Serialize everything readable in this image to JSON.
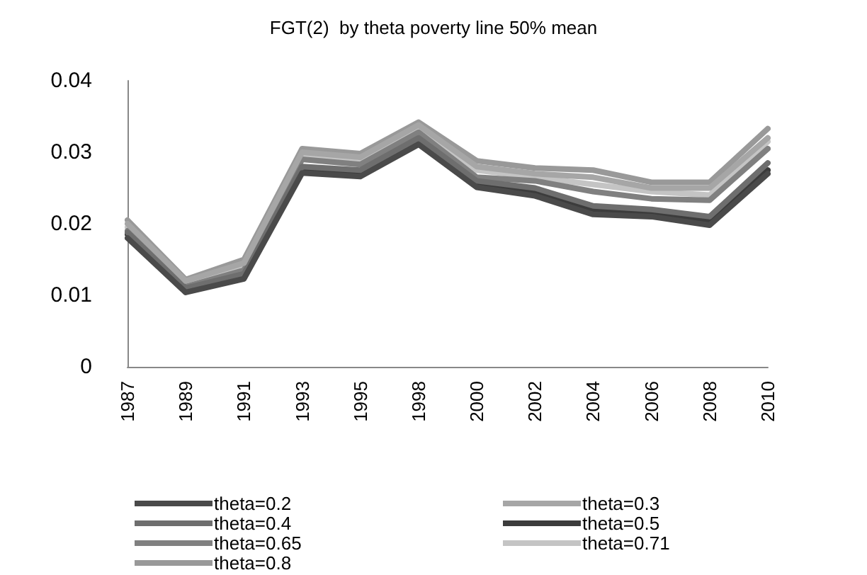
{
  "chart_data": {
    "type": "line",
    "title": "FGT(2)  by theta poverty line 50% mean",
    "categories": [
      "1987",
      "1989",
      "1991",
      "1993",
      "1995",
      "1998",
      "2000",
      "2002",
      "2004",
      "2006",
      "2008",
      "2010"
    ],
    "series": [
      {
        "name": "theta=0.2",
        "color": "#4a4a4a",
        "values": [
          0.018,
          0.0104,
          0.0123,
          0.0271,
          0.0266,
          0.0311,
          0.0251,
          0.0239,
          0.0213,
          0.021,
          0.0198,
          0.027
        ]
      },
      {
        "name": "theta=0.3",
        "color": "#a6a6a6",
        "values": [
          0.02,
          0.012,
          0.0145,
          0.03,
          0.0293,
          0.0338,
          0.028,
          0.027,
          0.0265,
          0.025,
          0.025,
          0.032
        ]
      },
      {
        "name": "theta=0.4",
        "color": "#6e6e6e",
        "values": [
          0.0188,
          0.011,
          0.013,
          0.028,
          0.0275,
          0.032,
          0.026,
          0.025,
          0.0225,
          0.022,
          0.021,
          0.0285
        ]
      },
      {
        "name": "theta=0.5",
        "color": "#3c3c3c",
        "values": [
          0.0185,
          0.0107,
          0.0127,
          0.0275,
          0.027,
          0.0316,
          0.0255,
          0.0243,
          0.0218,
          0.0215,
          0.0203,
          0.0275
        ]
      },
      {
        "name": "theta=0.65",
        "color": "#808080",
        "values": [
          0.019,
          0.0112,
          0.0135,
          0.029,
          0.0283,
          0.0328,
          0.0265,
          0.026,
          0.0245,
          0.0235,
          0.0233,
          0.0305
        ]
      },
      {
        "name": "theta=0.71",
        "color": "#c4c4c4",
        "values": [
          0.0195,
          0.0115,
          0.014,
          0.0295,
          0.029,
          0.0333,
          0.0275,
          0.0265,
          0.0255,
          0.0245,
          0.024,
          0.0315
        ]
      },
      {
        "name": "theta=0.8",
        "color": "#999999",
        "values": [
          0.0205,
          0.0122,
          0.015,
          0.0305,
          0.0298,
          0.0342,
          0.0288,
          0.0278,
          0.0275,
          0.0258,
          0.0258,
          0.0333
        ]
      }
    ],
    "ylim": [
      0,
      0.04
    ],
    "yticks": [
      0,
      0.01,
      0.02,
      0.03,
      0.04
    ],
    "grid": false,
    "legend": "bottom",
    "marker": "none",
    "line_style": "solid"
  }
}
